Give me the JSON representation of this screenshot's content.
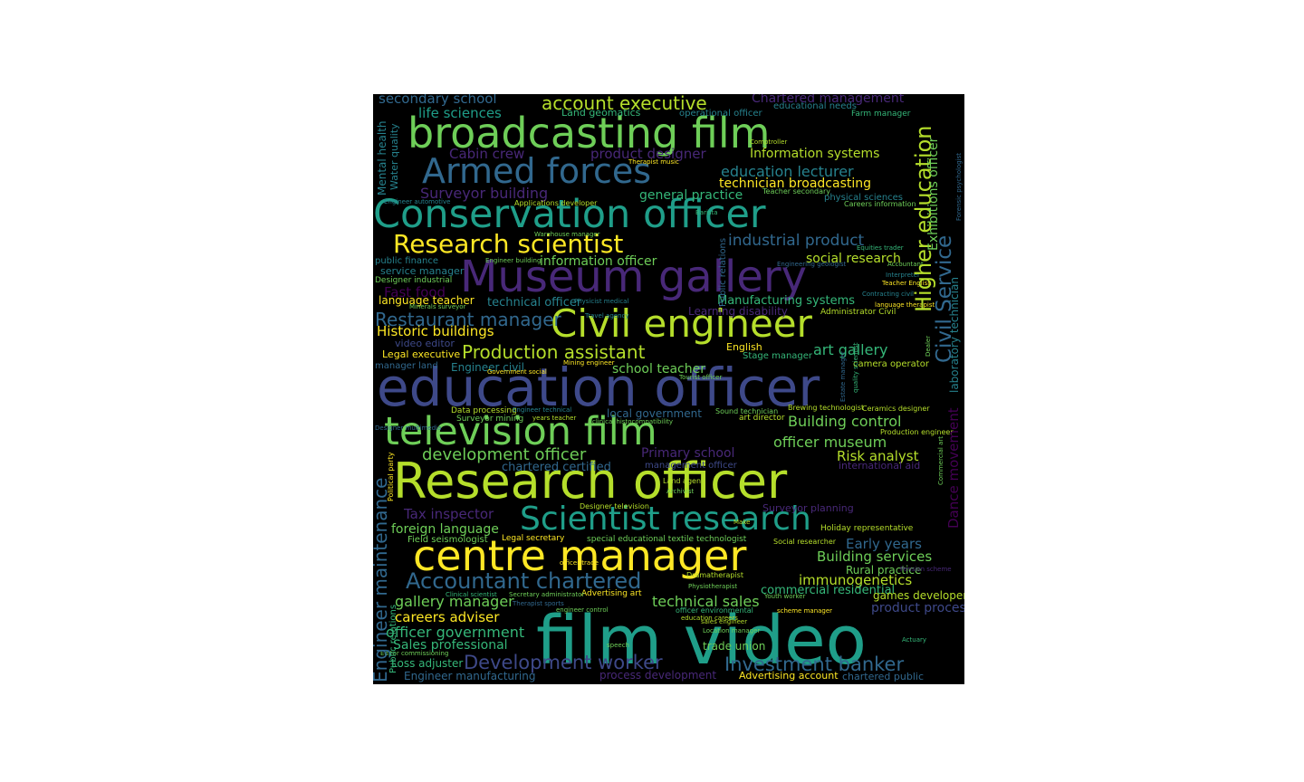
{
  "palette": {
    "background": "#000000",
    "yellow": "#fde725",
    "lime": "#b5de2b",
    "green": "#6ece58",
    "teal_green": "#35b779",
    "teal": "#1f9e89",
    "blue_teal": "#26828e",
    "blue": "#31688e",
    "indigo": "#3e4989",
    "purple": "#482878",
    "dark_purple": "#440154"
  },
  "words": [
    {
      "text": "film video",
      "color": "#1f9e89"
    },
    {
      "text": "education officer",
      "color": "#3e4989"
    },
    {
      "text": "Research officer",
      "color": "#b5de2b"
    },
    {
      "text": "Museum gallery",
      "color": "#482878"
    },
    {
      "text": "Conservation officer",
      "color": "#1f9e89"
    },
    {
      "text": "broadcasting film",
      "color": "#6ece58"
    },
    {
      "text": "television film",
      "color": "#6ece58"
    },
    {
      "text": "centre manager",
      "color": "#fde725"
    },
    {
      "text": "Scientist research",
      "color": "#1f9e89"
    },
    {
      "text": "Civil engineer",
      "color": "#b5de2b"
    },
    {
      "text": "Armed forces",
      "color": "#31688e"
    },
    {
      "text": "Research scientist",
      "color": "#fde725"
    },
    {
      "text": "Accountant chartered",
      "color": "#31688e"
    },
    {
      "text": "Development worker",
      "color": "#3e4989"
    },
    {
      "text": "Investment banker",
      "color": "#31688e"
    },
    {
      "text": "account executive",
      "color": "#b5de2b"
    },
    {
      "text": "Production assistant",
      "color": "#b5de2b"
    },
    {
      "text": "development officer",
      "color": "#6ece58"
    },
    {
      "text": "Higher education",
      "color": "#b5de2b"
    },
    {
      "text": "Restaurant manager",
      "color": "#31688e"
    },
    {
      "text": "Civil Service",
      "color": "#31688e"
    },
    {
      "text": "industrial product",
      "color": "#31688e"
    },
    {
      "text": "Building control",
      "color": "#6ece58"
    },
    {
      "text": "officer museum",
      "color": "#6ece58"
    },
    {
      "text": "Engineer maintenance",
      "color": "#31688e"
    },
    {
      "text": "Building services",
      "color": "#6ece58"
    },
    {
      "text": "immunogenetics",
      "color": "#b5de2b"
    },
    {
      "text": "gallery manager",
      "color": "#6ece58"
    },
    {
      "text": "technical sales",
      "color": "#6ece58"
    },
    {
      "text": "education lecturer",
      "color": "#26828e"
    },
    {
      "text": "technician broadcasting",
      "color": "#fde725"
    },
    {
      "text": "Information systems",
      "color": "#b5de2b"
    },
    {
      "text": "Tax inspector",
      "color": "#482878"
    },
    {
      "text": "foreign language",
      "color": "#6ece58"
    },
    {
      "text": "Early years",
      "color": "#31688e"
    },
    {
      "text": "Risk analyst",
      "color": "#b5de2b"
    },
    {
      "text": "art gallery",
      "color": "#35b779"
    },
    {
      "text": "school teacher",
      "color": "#6ece58"
    },
    {
      "text": "Surveyor building",
      "color": "#482878"
    },
    {
      "text": "Cabin crew",
      "color": "#482878"
    },
    {
      "text": "product designer",
      "color": "#482878"
    },
    {
      "text": "life sciences",
      "color": "#1f9e89"
    },
    {
      "text": "secondary school",
      "color": "#31688e"
    },
    {
      "text": "Chartered management",
      "color": "#482878"
    },
    {
      "text": "general practice",
      "color": "#35b779"
    },
    {
      "text": "social research",
      "color": "#b5de2b"
    },
    {
      "text": "information officer",
      "color": "#6ece58"
    },
    {
      "text": "Historic buildings",
      "color": "#fde725"
    },
    {
      "text": "Fast food",
      "color": "#440154"
    },
    {
      "text": "technical officer",
      "color": "#26828e"
    },
    {
      "text": "Manufacturing systems",
      "color": "#35b779"
    },
    {
      "text": "careers adviser",
      "color": "#fde725"
    },
    {
      "text": "officer government",
      "color": "#35b779"
    },
    {
      "text": "Sales professional",
      "color": "#35b779"
    },
    {
      "text": "Primary school",
      "color": "#482878"
    },
    {
      "text": "chartered certified",
      "color": "#31688e"
    },
    {
      "text": "Exhibitions officer",
      "color": "#6ece58"
    },
    {
      "text": "laboratory technician",
      "color": "#26828e"
    },
    {
      "text": "Dance movement",
      "color": "#440154"
    },
    {
      "text": "commercial residential",
      "color": "#35b779"
    },
    {
      "text": "games developer",
      "color": "#b5de2b"
    },
    {
      "text": "product process",
      "color": "#3e4989"
    },
    {
      "text": "Engineer civil",
      "color": "#26828e"
    },
    {
      "text": "language teacher",
      "color": "#fde725"
    },
    {
      "text": "Public relations",
      "color": "#31688e"
    },
    {
      "text": "Mental health",
      "color": "#26828e"
    },
    {
      "text": "Water quality",
      "color": "#26828e"
    },
    {
      "text": "Loss adjuster",
      "color": "#35b779"
    },
    {
      "text": "Engineer manufacturing",
      "color": "#31688e"
    },
    {
      "text": "process development",
      "color": "#482878"
    },
    {
      "text": "Advertising account",
      "color": "#fde725"
    },
    {
      "text": "chartered public",
      "color": "#31688e"
    },
    {
      "text": "trade union",
      "color": "#6ece58"
    },
    {
      "text": "Rural practice",
      "color": "#6ece58"
    },
    {
      "text": "Holiday representative",
      "color": "#b5de2b"
    },
    {
      "text": "camera operator",
      "color": "#b5de2b"
    },
    {
      "text": "Stage manager",
      "color": "#35b779"
    },
    {
      "text": "English",
      "color": "#fde725"
    },
    {
      "text": "Legal executive",
      "color": "#fde725"
    },
    {
      "text": "video editor",
      "color": "#3e4989"
    },
    {
      "text": "manager land",
      "color": "#31688e"
    },
    {
      "text": "service manager",
      "color": "#26828e"
    },
    {
      "text": "public finance",
      "color": "#26828e"
    },
    {
      "text": "Designer industrial",
      "color": "#6ece58"
    },
    {
      "text": "Farm manager",
      "color": "#35b779"
    },
    {
      "text": "Land geomatics",
      "color": "#35b779"
    },
    {
      "text": "operational officer",
      "color": "#26828e"
    },
    {
      "text": "educational needs",
      "color": "#26828e"
    },
    {
      "text": "Administrator Civil",
      "color": "#b5de2b"
    },
    {
      "text": "Learning disability",
      "color": "#482878"
    },
    {
      "text": "local government",
      "color": "#31688e"
    },
    {
      "text": "Surveyor mining",
      "color": "#6ece58"
    },
    {
      "text": "Data processing",
      "color": "#b5de2b"
    },
    {
      "text": "management officer",
      "color": "#3e4989"
    },
    {
      "text": "international aid",
      "color": "#482878"
    },
    {
      "text": "Production engineer",
      "color": "#b5de2b"
    },
    {
      "text": "art director",
      "color": "#b5de2b"
    },
    {
      "text": "Sound technician",
      "color": "#6ece58"
    },
    {
      "text": "Brewing technologist",
      "color": "#b5de2b"
    },
    {
      "text": "Ceramics designer",
      "color": "#b5de2b"
    },
    {
      "text": "Field seismologist",
      "color": "#6ece58"
    },
    {
      "text": "special educational textile technologist",
      "color": "#6ece58"
    },
    {
      "text": "Social researcher",
      "color": "#b5de2b"
    },
    {
      "text": "Legal secretary",
      "color": "#fde725"
    },
    {
      "text": "Advertising art",
      "color": "#fde725"
    },
    {
      "text": "Dramatherapist",
      "color": "#b5de2b"
    },
    {
      "text": "scheme manager",
      "color": "#fde725"
    },
    {
      "text": "Location manager",
      "color": "#6ece58"
    },
    {
      "text": "Editor commissioning",
      "color": "#6ece58"
    },
    {
      "text": "Surveyor planning",
      "color": "#482878"
    },
    {
      "text": "Pension scheme",
      "color": "#482878"
    },
    {
      "text": "Physiotherapist",
      "color": "#6ece58"
    },
    {
      "text": "sales engineer",
      "color": "#b5de2b"
    },
    {
      "text": "Designer television",
      "color": "#b5de2b"
    },
    {
      "text": "clinical histocompatibility",
      "color": "#6ece58"
    },
    {
      "text": "Applications developer",
      "color": "#b5de2b"
    },
    {
      "text": "Teacher secondary",
      "color": "#6ece58"
    },
    {
      "text": "physical sciences",
      "color": "#26828e"
    },
    {
      "text": "Careers information",
      "color": "#6ece58"
    },
    {
      "text": "Comptroller",
      "color": "#b5de2b"
    },
    {
      "text": "Warehouse manager",
      "color": "#6ece58"
    },
    {
      "text": "Engineer building",
      "color": "#6ece58"
    },
    {
      "text": "Engineer automotive",
      "color": "#26828e"
    },
    {
      "text": "Mining engineer",
      "color": "#fde725"
    },
    {
      "text": "Government social",
      "color": "#fde725"
    },
    {
      "text": "Tourist officer",
      "color": "#6ece58"
    },
    {
      "text": "Land agent",
      "color": "#b5de2b"
    },
    {
      "text": "Archivist",
      "color": "#6ece58"
    },
    {
      "text": "Therapist sports",
      "color": "#31688e"
    },
    {
      "text": "Therapist music",
      "color": "#fde725"
    },
    {
      "text": "Travel agency",
      "color": "#26828e"
    },
    {
      "text": "Physicist medical",
      "color": "#26828e"
    },
    {
      "text": "Minerals surveyor",
      "color": "#6ece58"
    },
    {
      "text": "Teacher English",
      "color": "#fde725"
    },
    {
      "text": "language therapist",
      "color": "#fde725"
    },
    {
      "text": "Contracting civil",
      "color": "#26828e"
    },
    {
      "text": "Interpreter",
      "color": "#26828e"
    },
    {
      "text": "Accountant",
      "color": "#6ece58"
    },
    {
      "text": "Equities trader",
      "color": "#35b779"
    },
    {
      "text": "Engineering geologist",
      "color": "#31688e"
    },
    {
      "text": "Designer multimedia",
      "color": "#31688e"
    },
    {
      "text": "Clinical scientist",
      "color": "#35b779"
    },
    {
      "text": "Secretary administrator",
      "color": "#6ece58"
    },
    {
      "text": "education careers",
      "color": "#b5de2b"
    },
    {
      "text": "Youth worker",
      "color": "#6ece58"
    },
    {
      "text": "officer environmental",
      "color": "#35b779"
    },
    {
      "text": "engineer control",
      "color": "#6ece58"
    },
    {
      "text": "officer trade",
      "color": "#fde725"
    },
    {
      "text": "Political party",
      "color": "#fde725"
    },
    {
      "text": "Commercial art",
      "color": "#6ece58"
    },
    {
      "text": "Forensic psychologist",
      "color": "#31688e"
    },
    {
      "text": "Estate manager",
      "color": "#31688e"
    },
    {
      "text": "quality scientist",
      "color": "#35b779"
    },
    {
      "text": "Dealer",
      "color": "#6ece58"
    },
    {
      "text": "Barista",
      "color": "#35b779"
    },
    {
      "text": "Make",
      "color": "#b5de2b"
    },
    {
      "text": "Actuary",
      "color": "#35b779"
    },
    {
      "text": "speech",
      "color": "#6ece58"
    },
    {
      "text": "Engineer technical",
      "color": "#26828e"
    },
    {
      "text": "years teacher",
      "color": "#b5de2b"
    }
  ]
}
